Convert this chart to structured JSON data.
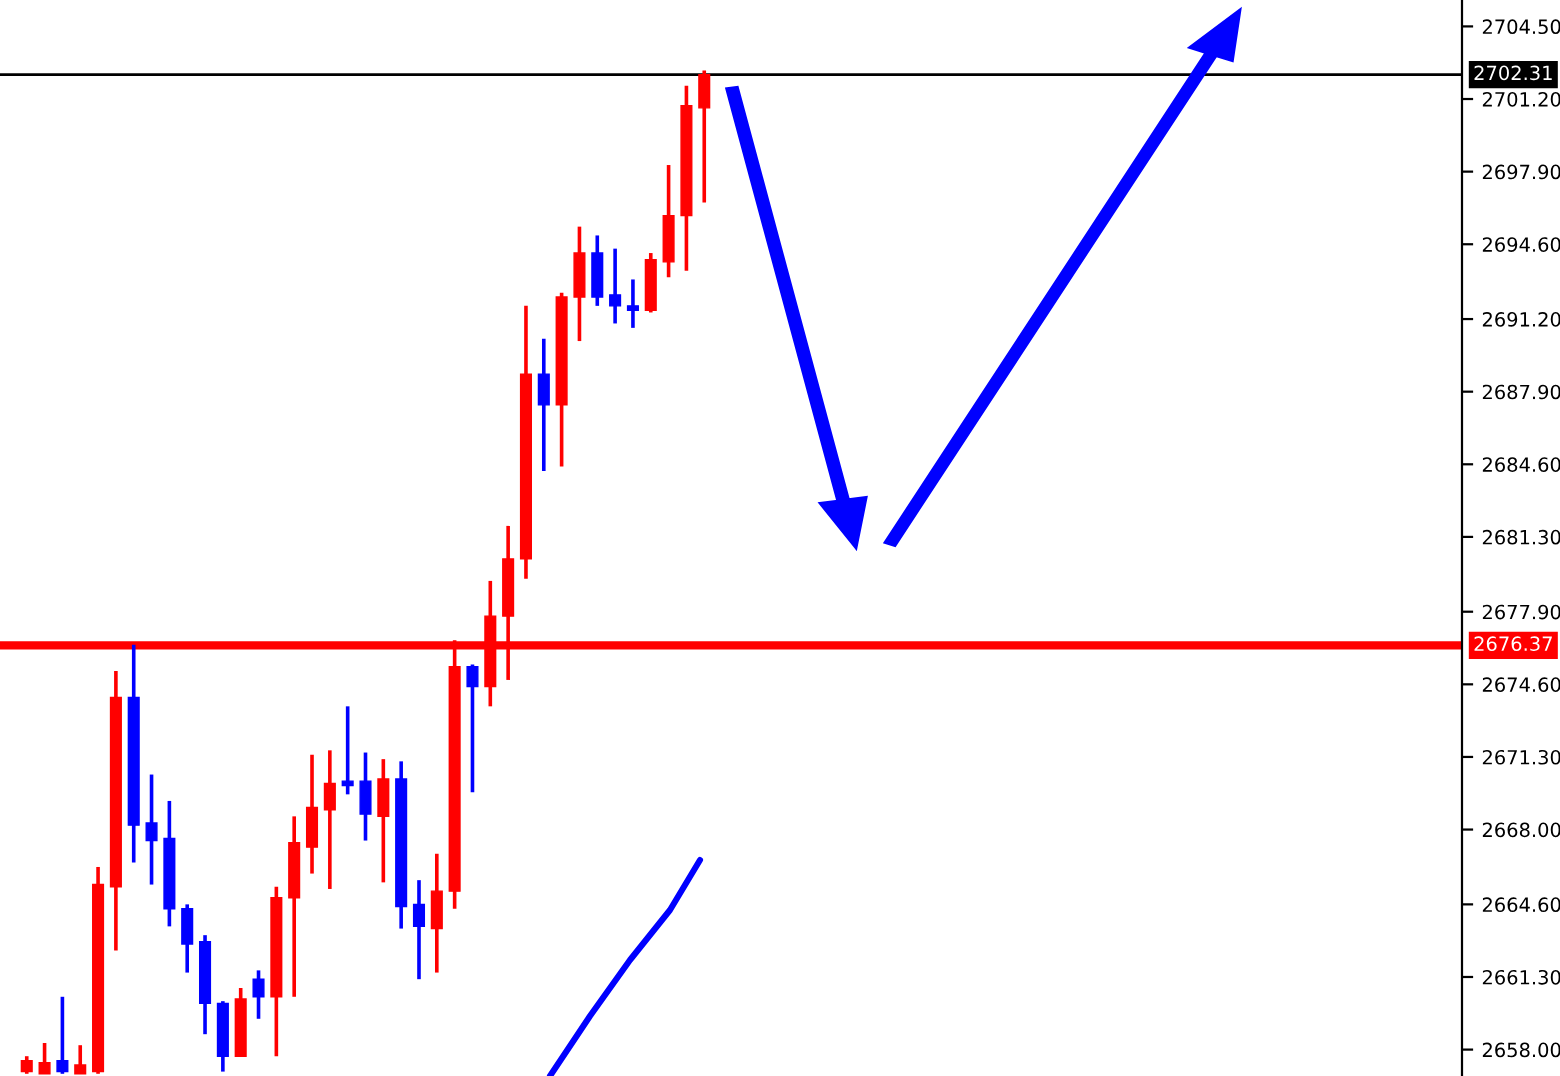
{
  "chart_data": {
    "type": "candlestick",
    "categories": [
      null,
      null,
      null,
      null,
      null,
      null,
      null,
      null,
      null,
      null,
      null,
      null,
      null,
      null,
      null,
      null,
      null,
      null,
      null,
      null,
      null,
      null,
      null,
      null,
      null,
      null,
      null,
      null,
      null,
      null,
      null,
      null,
      null,
      null,
      null,
      null,
      null,
      null,
      null,
      null,
      null,
      null,
      null,
      null,
      null,
      null,
      null,
      null,
      null,
      null,
      null,
      null,
      null,
      null,
      null,
      null,
      null,
      null,
      null,
      null,
      null,
      null,
      null,
      null,
      null,
      null,
      null,
      null,
      null,
      null,
      null,
      null,
      null,
      null,
      null,
      null,
      null,
      null,
      null,
      null,
      null,
      null
    ],
    "ohlc": [
      null,
      [
        2657.0,
        2657.7,
        2656.9,
        2657.5
      ],
      [
        2656.9,
        2658.3,
        2656.9,
        2657.4
      ],
      [
        2657.5,
        2660.4,
        2656.9,
        2657.0
      ],
      [
        2656.9,
        2658.2,
        2656.9,
        2657.3
      ],
      [
        2657.0,
        2666.3,
        2656.9,
        2665.5
      ],
      [
        2665.4,
        2675.2,
        2662.5,
        2674.0
      ],
      [
        2674.0,
        2676.4,
        2666.5,
        2668.2
      ],
      [
        2668.3,
        2670.5,
        2665.5,
        2667.5
      ],
      [
        2667.6,
        2669.3,
        2663.6,
        2664.4
      ],
      [
        2664.4,
        2664.6,
        2661.5,
        2662.8
      ],
      [
        2662.9,
        2663.2,
        2658.7,
        2660.1
      ],
      [
        2660.1,
        2660.2,
        2657.0,
        2657.7
      ],
      [
        2657.7,
        2660.8,
        2657.7,
        2660.3
      ],
      [
        2661.2,
        2661.6,
        2659.4,
        2660.4
      ],
      [
        2660.4,
        2665.4,
        2657.7,
        2664.9
      ],
      [
        2664.9,
        2668.6,
        2660.4,
        2667.4
      ],
      [
        2667.2,
        2671.4,
        2666.0,
        2669.0
      ],
      [
        2668.9,
        2671.6,
        2665.3,
        2670.1
      ],
      [
        2670.2,
        2673.6,
        2669.6,
        2670.0
      ],
      [
        2670.2,
        2671.5,
        2667.5,
        2668.7
      ],
      [
        2668.6,
        2671.2,
        2665.6,
        2670.3
      ],
      [
        2670.3,
        2671.1,
        2663.5,
        2664.5
      ],
      [
        2664.6,
        2665.7,
        2661.2,
        2663.6
      ],
      [
        2663.5,
        2666.9,
        2661.5,
        2665.2
      ],
      [
        2665.2,
        2676.6,
        2664.4,
        2675.4
      ],
      [
        2675.4,
        2675.5,
        2669.7,
        2674.5
      ],
      [
        2674.5,
        2679.3,
        2673.6,
        2677.7
      ],
      [
        2677.7,
        2681.8,
        2674.8,
        2680.3
      ],
      [
        2680.3,
        2691.8,
        2679.4,
        2688.7
      ],
      [
        2688.7,
        2690.3,
        2684.3,
        2687.3
      ],
      [
        2687.3,
        2692.4,
        2684.5,
        2692.2
      ],
      [
        2692.2,
        2695.4,
        2690.2,
        2694.2
      ],
      [
        2694.2,
        2695.0,
        2691.8,
        2692.2
      ],
      [
        2692.3,
        2694.4,
        2691.0,
        2691.8
      ],
      [
        2691.8,
        2693.0,
        2690.8,
        2691.6
      ],
      [
        2691.6,
        2694.2,
        2691.5,
        2693.9
      ],
      [
        2693.8,
        2698.2,
        2693.1,
        2695.9
      ],
      [
        2695.9,
        2701.8,
        2693.4,
        2700.9
      ],
      [
        2700.8,
        2702.5,
        2696.5,
        2702.3
      ],
      null,
      null,
      null,
      null,
      null,
      null,
      null,
      null,
      null,
      null,
      null,
      null,
      null,
      null,
      null,
      null,
      null,
      null,
      null,
      null,
      null,
      null,
      null,
      null,
      null,
      null,
      null,
      null,
      null,
      null,
      null,
      null,
      null,
      null,
      null,
      null,
      null,
      null,
      null,
      null,
      null,
      null
    ],
    "colors": [
      null,
      "#ff0000",
      "#ff0000",
      "#0000ff",
      "#ff0000",
      "#ff0000",
      "#ff0000",
      "#0000ff",
      "#0000ff",
      "#0000ff",
      "#0000ff",
      "#0000ff",
      "#0000ff",
      "#ff0000",
      "#0000ff",
      "#ff0000",
      "#ff0000",
      "#ff0000",
      "#ff0000",
      "#0000ff",
      "#0000ff",
      "#ff0000",
      "#0000ff",
      "#0000ff",
      "#ff0000",
      "#ff0000",
      "#0000ff",
      "#ff0000",
      "#ff0000",
      "#ff0000",
      "#0000ff",
      "#ff0000",
      "#ff0000",
      "#0000ff",
      "#0000ff",
      "#0000ff",
      "#ff0000",
      "#ff0000",
      "#ff0000",
      "#ff0000",
      null,
      null,
      null,
      null,
      null,
      null,
      null,
      null,
      null,
      null,
      null,
      null,
      null,
      null,
      null,
      null,
      null,
      null,
      null,
      null,
      null,
      null,
      null,
      null,
      null,
      null,
      null,
      null,
      null,
      null,
      null,
      null,
      null,
      null,
      null,
      null,
      null,
      null,
      null,
      null,
      null,
      null
    ],
    "ylim": [
      2656.8,
      2705.7
    ],
    "yticks": [
      {
        "value": 2658.0,
        "label": "2658.00"
      },
      {
        "value": 2661.3,
        "label": "2661.30"
      },
      {
        "value": 2664.6,
        "label": "2664.60"
      },
      {
        "value": 2668.0,
        "label": "2668.00"
      },
      {
        "value": 2671.3,
        "label": "2671.30"
      },
      {
        "value": 2674.6,
        "label": "2674.60"
      },
      {
        "value": 2677.9,
        "label": "2677.90"
      },
      {
        "value": 2681.3,
        "label": "2681.30"
      },
      {
        "value": 2684.6,
        "label": "2684.60"
      },
      {
        "value": 2687.9,
        "label": "2687.90"
      },
      {
        "value": 2691.2,
        "label": "2691.20"
      },
      {
        "value": 2694.6,
        "label": "2694.60"
      },
      {
        "value": 2697.9,
        "label": "2697.90"
      },
      {
        "value": 2701.2,
        "label": "2701.20"
      },
      {
        "value": 2704.5,
        "label": "2704.50"
      }
    ],
    "ref_lines": [
      {
        "axis": "y",
        "value": 2702.31,
        "label": "2702.31",
        "color": "#000000"
      },
      {
        "axis": "y",
        "value": 2676.37,
        "label": "2676.37",
        "color": "#ff0000"
      }
    ],
    "grid": false,
    "legend": false
  }
}
